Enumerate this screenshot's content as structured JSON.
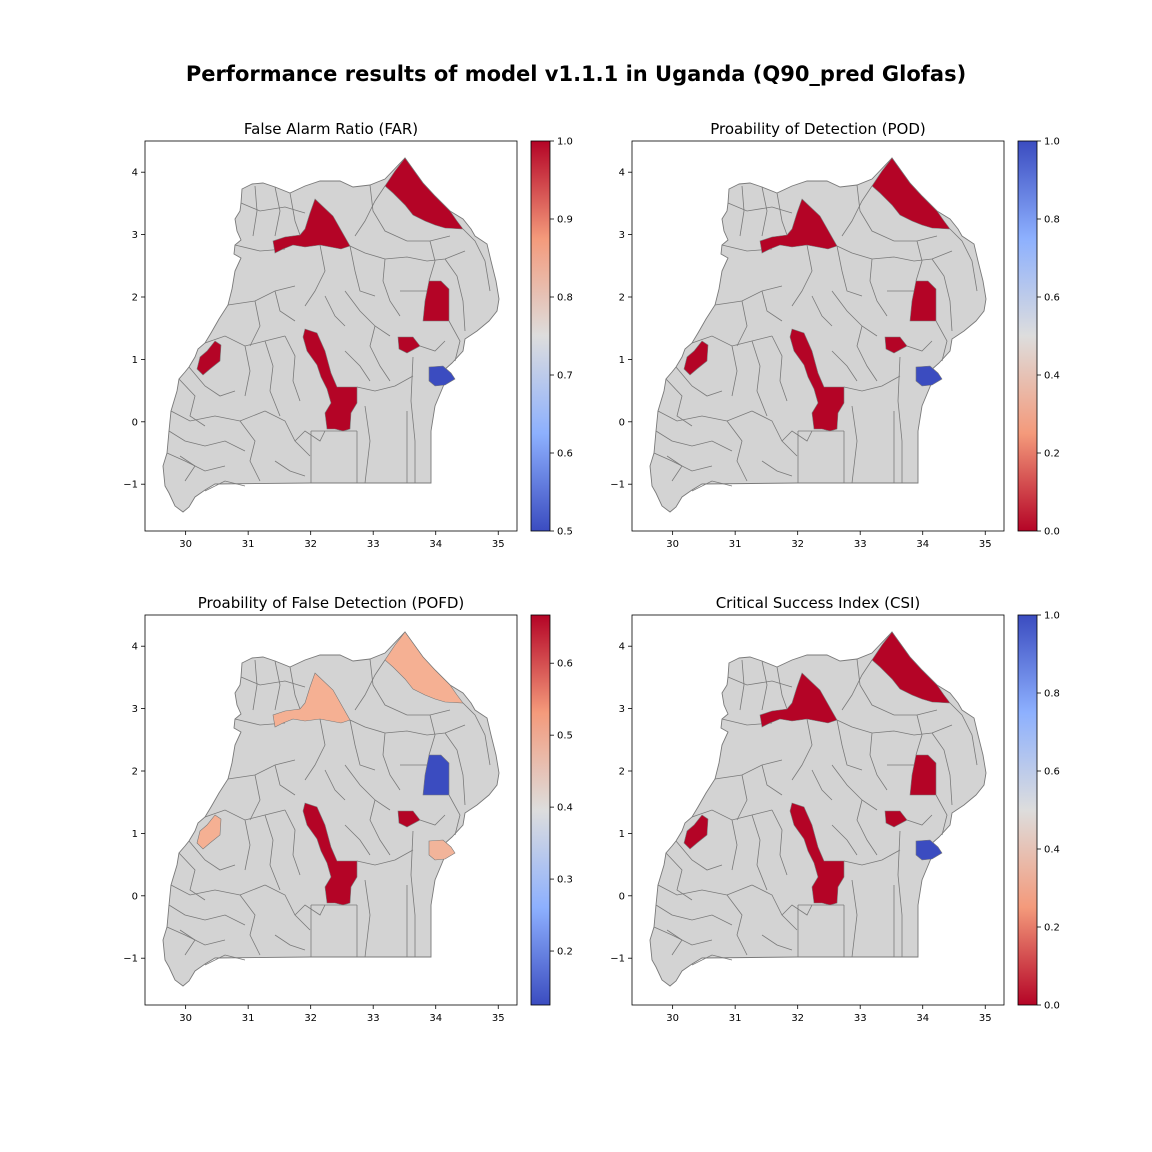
{
  "figure": {
    "suptitle": "Performance results of model v1.1.1 in Uganda (Q90_pred Glofas)"
  },
  "colors": {
    "base_region": "#d3d3d3",
    "border": "#7a7a7a",
    "red": "#b40426",
    "blue": "#3b4cc0",
    "salmon": "#f5b093",
    "light_salmon": "#f2b49a"
  },
  "panels": [
    {
      "id": "far",
      "title": "False Alarm Ratio (FAR)",
      "colorbar": {
        "cmap": "coolwarm",
        "reverse": false,
        "min": 0.5,
        "max": 1.0,
        "ticks": [
          "0.5",
          "0.6",
          "0.7",
          "0.8",
          "0.9",
          "1.0"
        ]
      },
      "highlights": {
        "northeast": "red",
        "northwest": "red",
        "east_strip": "red",
        "west": "red",
        "central": "red",
        "elgon_north": "red",
        "elgon_south": "blue"
      }
    },
    {
      "id": "pod",
      "title": "Proability of Detection (POD)",
      "colorbar": {
        "cmap": "coolwarm",
        "reverse": true,
        "min": 0.0,
        "max": 1.0,
        "ticks": [
          "0.0",
          "0.2",
          "0.4",
          "0.6",
          "0.8",
          "1.0"
        ]
      },
      "highlights": {
        "northeast": "red",
        "northwest": "red",
        "east_strip": "red",
        "west": "red",
        "central": "red",
        "elgon_north": "red",
        "elgon_south": "blue"
      }
    },
    {
      "id": "pofd",
      "title": "Proability of False Detection (POFD)",
      "colorbar": {
        "cmap": "coolwarm",
        "reverse": false,
        "min": 0.125,
        "max": 0.667,
        "ticks": [
          "0.2",
          "0.3",
          "0.4",
          "0.5",
          "0.6"
        ],
        "tick_values": [
          0.2,
          0.3,
          0.4,
          0.5,
          0.6
        ]
      },
      "highlights": {
        "northeast": "salmon",
        "northwest": "salmon",
        "east_strip": "blue",
        "west": "salmon",
        "central": "red",
        "elgon_north": "red",
        "elgon_south": "light_salmon"
      }
    },
    {
      "id": "csi",
      "title": "Critical Success Index (CSI)",
      "colorbar": {
        "cmap": "coolwarm",
        "reverse": true,
        "min": 0.0,
        "max": 1.0,
        "ticks": [
          "0.0",
          "0.2",
          "0.4",
          "0.6",
          "0.8",
          "1.0"
        ]
      },
      "highlights": {
        "northeast": "red",
        "northwest": "red",
        "east_strip": "red",
        "west": "red",
        "central": "red",
        "elgon_north": "red",
        "elgon_south": "blue"
      }
    }
  ],
  "axes": {
    "x_ticks": [
      "30",
      "31",
      "32",
      "33",
      "34",
      "35"
    ],
    "x_values": [
      30,
      31,
      32,
      33,
      34,
      35
    ],
    "y_ticks": [
      "4",
      "3",
      "2",
      "1",
      "0",
      "−1"
    ],
    "y_values": [
      4,
      3,
      2,
      1,
      0,
      -1
    ],
    "xlim": [
      29.35,
      35.3
    ],
    "ylim": [
      -1.75,
      4.5
    ]
  }
}
